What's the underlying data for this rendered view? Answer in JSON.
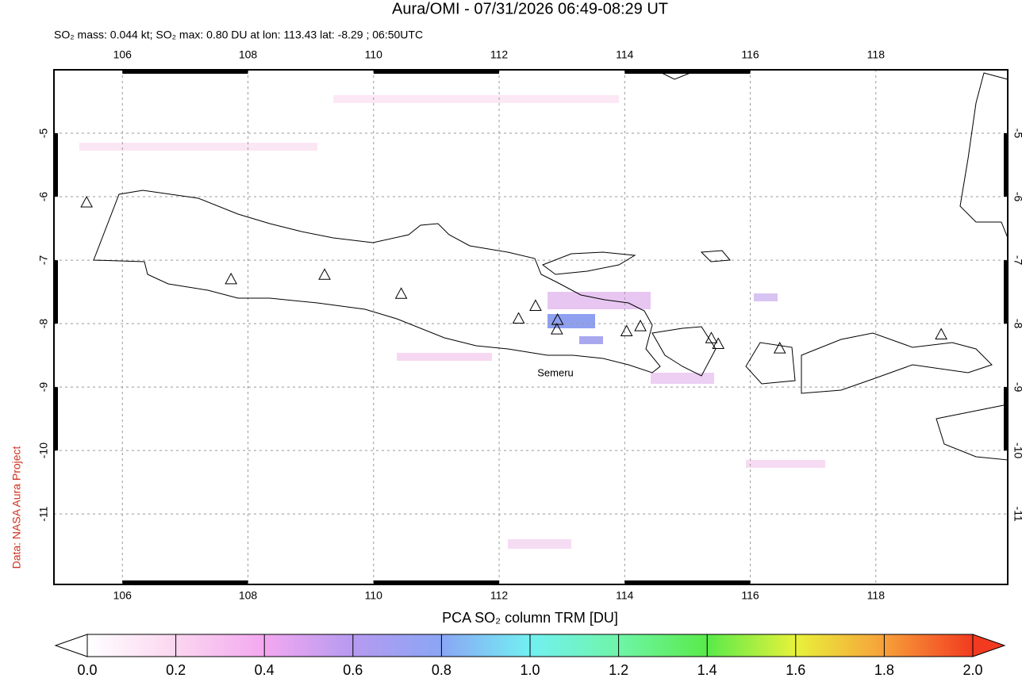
{
  "chart_data": {
    "type": "map",
    "title": "Aura/OMI - 07/31/2026 06:49-08:29 UT",
    "subtitle": "SO₂ mass: 0.044 kt; SO₂ max: 0.80 DU at lon: 113.43 lat: -8.29 ; 06:50UTC",
    "credit": "Data: NASA Aura Project",
    "xlim": [
      104.91,
      120.1
    ],
    "ylim": [
      -12.11,
      -4.0
    ],
    "xticks": [
      106,
      108,
      110,
      112,
      114,
      116,
      118
    ],
    "yticks": [
      -5,
      -6,
      -7,
      -8,
      -9,
      -10,
      -11
    ],
    "grid": true,
    "volcanoes": {
      "lon": [
        105.43,
        107.73,
        109.22,
        110.44,
        112.31,
        112.58,
        112.93,
        112.92,
        114.03,
        114.25,
        115.38,
        115.49,
        116.47,
        119.04
      ],
      "lat": [
        -6.1,
        -7.31,
        -7.24,
        -7.54,
        -7.93,
        -7.73,
        -7.95,
        -8.1,
        -8.13,
        -8.05,
        -8.24,
        -8.33,
        -8.4,
        -8.18
      ]
    },
    "annotations": [
      "Semeru"
    ],
    "colorbar": {
      "label": "PCA SO₂ column TRM [DU]",
      "lim": [
        0,
        2
      ],
      "ticks": [
        {
          "value": 0,
          "label": "0.0"
        },
        0.2,
        0.4,
        0.6,
        0.8,
        {
          "value": 1,
          "label": "1.0"
        },
        1.2,
        1.4,
        1.6,
        1.8,
        {
          "value": 2,
          "label": "2.0"
        }
      ]
    }
  }
}
